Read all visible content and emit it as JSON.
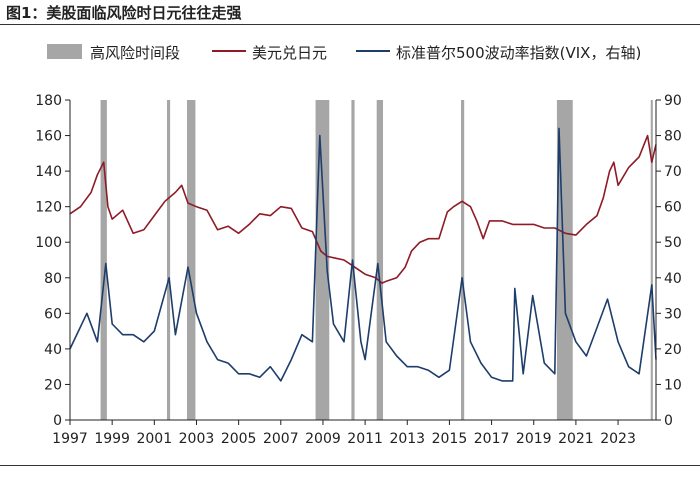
{
  "figure_title": "图1：美股面临风险时日元往往走强",
  "chart_data": {
    "type": "line",
    "title": "",
    "xlabel": "",
    "ylabel": "",
    "y2label": "",
    "x_ticks": [
      "1997",
      "1999",
      "2001",
      "2003",
      "2005",
      "2007",
      "2009",
      "2011",
      "2013",
      "2015",
      "2017",
      "2019",
      "2021",
      "2023"
    ],
    "xlim": [
      1997,
      2024.8
    ],
    "ylim": [
      0,
      180
    ],
    "y_ticks": [
      0,
      20,
      40,
      60,
      80,
      100,
      120,
      140,
      160,
      180
    ],
    "y2lim": [
      0,
      90
    ],
    "y2_ticks": [
      0,
      10,
      20,
      30,
      40,
      50,
      60,
      70,
      80,
      90
    ],
    "grid": false,
    "legend_position": "top",
    "legend": {
      "band": "高风险时间段",
      "usdjpy": "美元兑日元",
      "vix": "标准普尔500波动率指数(VIX，右轴)"
    },
    "colors": {
      "band": "#a6a6a6",
      "usdjpy": "#8e1b26",
      "vix": "#1d3d6b"
    },
    "high_risk_periods": [
      [
        1998.45,
        1998.75
      ],
      [
        2001.6,
        2001.75
      ],
      [
        2002.55,
        2002.95
      ],
      [
        2008.65,
        2009.3
      ],
      [
        2010.35,
        2010.5
      ],
      [
        2011.55,
        2011.85
      ],
      [
        2015.55,
        2015.7
      ],
      [
        2020.1,
        2020.85
      ],
      [
        2024.55,
        2024.65
      ]
    ],
    "series": [
      {
        "name": "美元兑日元",
        "axis": "left",
        "x": [
          1997.0,
          1997.5,
          1998.0,
          1998.3,
          1998.6,
          1998.8,
          1999.0,
          1999.5,
          2000.0,
          2000.5,
          2001.0,
          2001.5,
          2002.0,
          2002.3,
          2002.6,
          2003.0,
          2003.5,
          2004.0,
          2004.5,
          2005.0,
          2005.5,
          2006.0,
          2006.5,
          2007.0,
          2007.5,
          2008.0,
          2008.5,
          2008.9,
          2009.2,
          2009.6,
          2010.0,
          2010.5,
          2011.0,
          2011.5,
          2011.8,
          2012.0,
          2012.5,
          2012.9,
          2013.2,
          2013.6,
          2014.0,
          2014.5,
          2014.9,
          2015.2,
          2015.6,
          2016.0,
          2016.3,
          2016.6,
          2016.9,
          2017.5,
          2018.0,
          2018.5,
          2019.0,
          2019.5,
          2020.0,
          2020.5,
          2021.0,
          2021.5,
          2022.0,
          2022.3,
          2022.6,
          2022.8,
          2023.0,
          2023.5,
          2024.0,
          2024.4,
          2024.6,
          2024.8
        ],
        "values": [
          116,
          120,
          128,
          138,
          145,
          120,
          113,
          118,
          105,
          107,
          115,
          123,
          128,
          132,
          122,
          120,
          118,
          107,
          109,
          105,
          110,
          116,
          115,
          120,
          119,
          108,
          106,
          95,
          92,
          91,
          90,
          86,
          82,
          80,
          77,
          78,
          80,
          86,
          95,
          100,
          102,
          102,
          117,
          120,
          123,
          120,
          112,
          102,
          112,
          112,
          110,
          110,
          110,
          108,
          108,
          105,
          104,
          110,
          115,
          125,
          140,
          145,
          132,
          142,
          148,
          160,
          145,
          155
        ]
      },
      {
        "name": "标准普尔500波动率指数(VIX，右轴)",
        "axis": "right",
        "x": [
          1997.0,
          1997.8,
          1998.3,
          1998.7,
          1999.0,
          1999.5,
          2000.0,
          2000.5,
          2001.0,
          2001.7,
          2002.0,
          2002.6,
          2003.0,
          2003.5,
          2004.0,
          2004.5,
          2005.0,
          2005.5,
          2006.0,
          2006.5,
          2007.0,
          2007.5,
          2008.0,
          2008.5,
          2008.85,
          2009.2,
          2009.5,
          2010.0,
          2010.4,
          2010.8,
          2011.0,
          2011.6,
          2012.0,
          2012.5,
          2013.0,
          2013.5,
          2014.0,
          2014.5,
          2015.0,
          2015.6,
          2016.0,
          2016.5,
          2017.0,
          2017.5,
          2018.0,
          2018.1,
          2018.5,
          2018.95,
          2019.5,
          2020.0,
          2020.2,
          2020.5,
          2021.0,
          2021.5,
          2022.0,
          2022.5,
          2023.0,
          2023.5,
          2024.0,
          2024.6,
          2024.8
        ],
        "values": [
          20,
          30,
          22,
          44,
          27,
          24,
          24,
          22,
          25,
          40,
          24,
          43,
          30,
          22,
          17,
          16,
          13,
          13,
          12,
          15,
          11,
          17,
          24,
          22,
          80,
          42,
          27,
          22,
          45,
          22,
          17,
          44,
          22,
          18,
          15,
          15,
          14,
          12,
          14,
          40,
          22,
          16,
          12,
          11,
          11,
          37,
          13,
          35,
          16,
          13,
          82,
          30,
          22,
          18,
          26,
          34,
          22,
          15,
          13,
          38,
          17
        ]
      }
    ]
  }
}
